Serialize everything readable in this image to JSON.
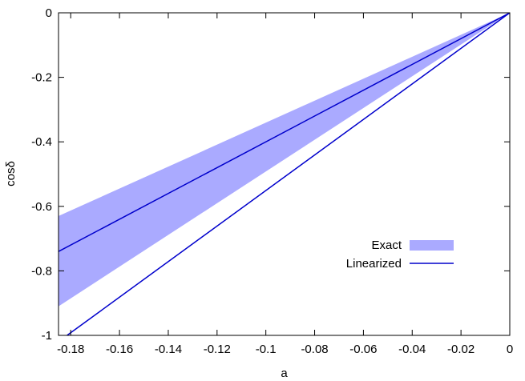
{
  "chart_data": {
    "type": "line",
    "title": "",
    "xlabel": "a",
    "ylabel": "cosδ",
    "xlim": [
      -0.185,
      0
    ],
    "ylim": [
      -1,
      0
    ],
    "x_ticks": [
      -0.18,
      -0.16,
      -0.14,
      -0.12,
      -0.1,
      -0.08,
      -0.06,
      -0.04,
      -0.02,
      0
    ],
    "x_tick_labels": [
      "-0.18",
      "-0.16",
      "-0.14",
      "-0.12",
      "-0.1",
      "-0.08",
      "-0.06",
      "-0.04",
      "-0.02",
      "0"
    ],
    "y_ticks": [
      -1,
      -0.8,
      -0.6,
      -0.4,
      -0.2,
      0
    ],
    "y_tick_labels": [
      "-1",
      "-0.8",
      "-0.6",
      "-0.4",
      "-0.2",
      "0"
    ],
    "grid": false,
    "legend_position": "bottom-right",
    "series": [
      {
        "name": "Exact",
        "kind": "band",
        "color": "#aaaaff",
        "x": [
          -0.185,
          0
        ],
        "lower": [
          -0.91,
          0
        ],
        "upper": [
          -0.63,
          0
        ]
      },
      {
        "name": "Linearized",
        "kind": "line",
        "color": "#0000cc",
        "x": [
          -0.185,
          0
        ],
        "y": [
          -0.74,
          0
        ]
      },
      {
        "name": "",
        "kind": "line",
        "color": "#0000cc",
        "x": [
          -0.1815,
          0
        ],
        "y": [
          -1,
          0
        ]
      }
    ]
  }
}
